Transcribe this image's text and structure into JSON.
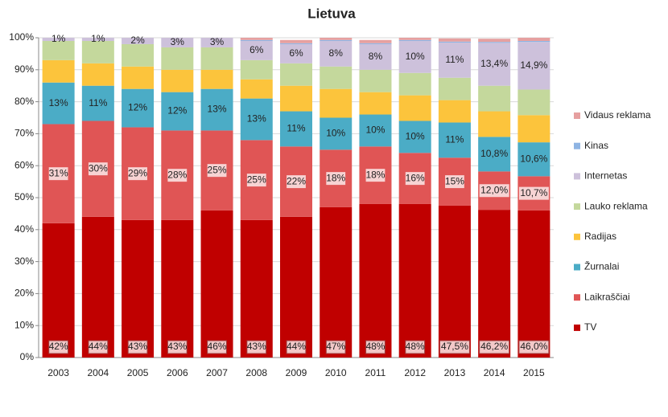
{
  "chart_data": {
    "type": "stacked_bar",
    "title": "Lietuva",
    "categories": [
      "2003",
      "2004",
      "2005",
      "2006",
      "2007",
      "2008",
      "2009",
      "2010",
      "2011",
      "2012",
      "2013",
      "2014",
      "2015"
    ],
    "ylim": [
      0,
      100
    ],
    "yticks": [
      {
        "value": 0,
        "label": "0%"
      },
      {
        "value": 10,
        "label": "10%"
      },
      {
        "value": 20,
        "label": "20%"
      },
      {
        "value": 30,
        "label": "30%"
      },
      {
        "value": 40,
        "label": "40%"
      },
      {
        "value": 50,
        "label": "50%"
      },
      {
        "value": 60,
        "label": "60%"
      },
      {
        "value": 70,
        "label": "70%"
      },
      {
        "value": 80,
        "label": "80%"
      },
      {
        "value": 90,
        "label": "90%"
      },
      {
        "value": 100,
        "label": "100%"
      }
    ],
    "grid": true,
    "legend": "right",
    "series": [
      {
        "name": "TV",
        "color": "#c00000",
        "values": [
          42,
          44,
          43,
          43,
          46,
          43,
          44,
          47,
          48,
          48,
          47.5,
          46.2,
          46.0
        ],
        "value_labels": [
          "42%",
          "44%",
          "43%",
          "43%",
          "46%",
          "43%",
          "44%",
          "47%",
          "48%",
          "48%",
          "47,5%",
          "46,2%",
          "46,0%"
        ]
      },
      {
        "name": "Laikraščiai",
        "color": "#e05555",
        "values": [
          31,
          30,
          29,
          28,
          25,
          25,
          22,
          18,
          18,
          16,
          15,
          12.0,
          10.7
        ],
        "value_labels": [
          "31%",
          "30%",
          "29%",
          "28%",
          "25%",
          "25%",
          "22%",
          "18%",
          "18%",
          "16%",
          "15%",
          "12,0%",
          "10,7%"
        ]
      },
      {
        "name": "Žurnalai",
        "color": "#4bacc6",
        "values": [
          13,
          11,
          12,
          12,
          13,
          13,
          11,
          10,
          10,
          10,
          11,
          10.8,
          10.6
        ],
        "value_labels": [
          "13%",
          "11%",
          "12%",
          "12%",
          "13%",
          "13%",
          "11%",
          "10%",
          "10%",
          "10%",
          "11%",
          "10,8%",
          "10,6%"
        ]
      },
      {
        "name": "Radijas",
        "color": "#fcc43c",
        "values": [
          7,
          7,
          7,
          7,
          6,
          6,
          8,
          9,
          7,
          8,
          7,
          8,
          8.5
        ]
      },
      {
        "name": "Lauko reklama",
        "color": "#c4d89c",
        "values": [
          6,
          7,
          7,
          7,
          7,
          6,
          7,
          7,
          7,
          7,
          7,
          8,
          8
        ]
      },
      {
        "name": "Internetas",
        "color": "#cdc1db",
        "values": [
          1,
          1,
          2,
          3,
          3,
          6,
          6,
          8,
          8,
          10,
          11,
          13.4,
          14.9
        ],
        "value_labels": [
          "1%",
          "1%",
          "2%",
          "3%",
          "3%",
          "6%",
          "6%",
          "8%",
          "8%",
          "10%",
          "11%",
          "13,4%",
          "14,9%"
        ]
      },
      {
        "name": "Kinas",
        "color": "#8eb4e3",
        "values": [
          0,
          0,
          0,
          0,
          0,
          0.3,
          0.3,
          0.3,
          0.3,
          0.3,
          0.3,
          0.3,
          0.3
        ]
      },
      {
        "name": "Vidaus reklama",
        "color": "#e6a0a0",
        "values": [
          0,
          0,
          0,
          0,
          0,
          1,
          1,
          1,
          1,
          1,
          1,
          1,
          1
        ]
      }
    ]
  }
}
